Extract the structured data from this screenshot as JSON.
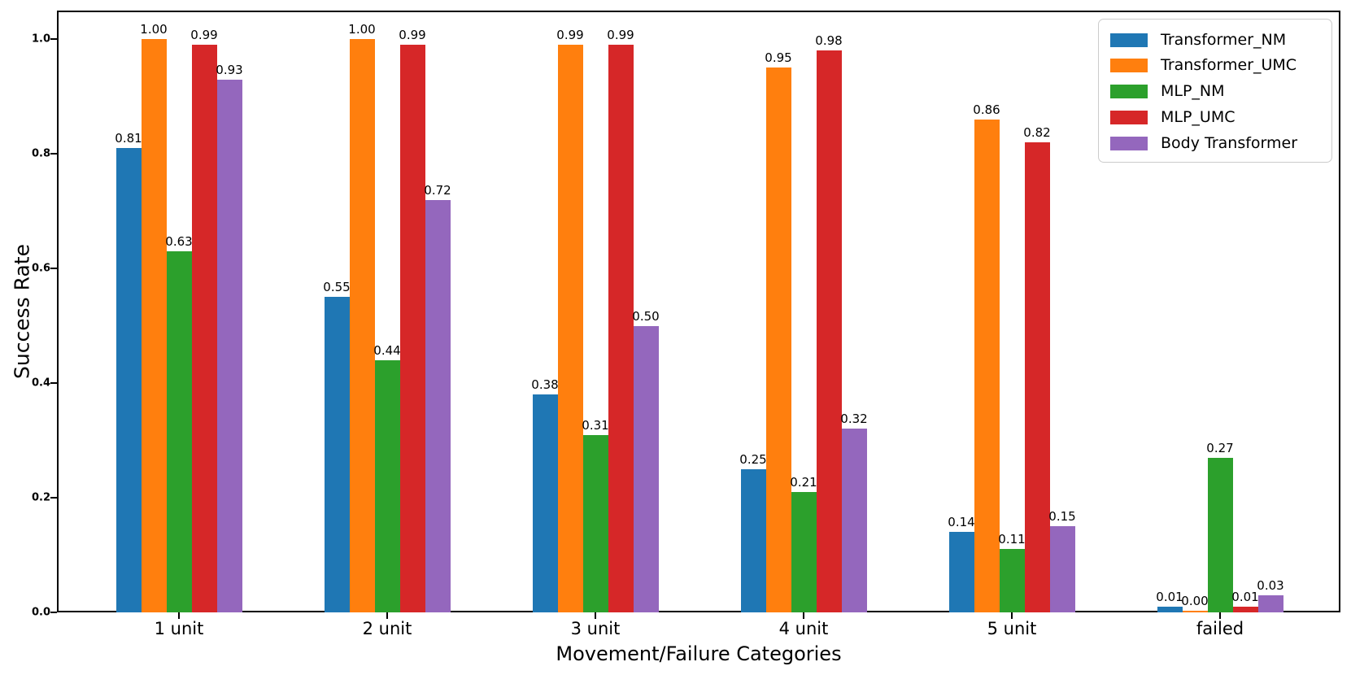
{
  "chart_data": {
    "type": "bar",
    "title": "",
    "xlabel": "Movement/Failure Categories",
    "ylabel": "Success Rate",
    "categories": [
      "1 unit",
      "2 unit",
      "3 unit",
      "4 unit",
      "5 unit",
      "failed"
    ],
    "series": [
      {
        "name": "Transformer_NM",
        "color": "#1f77b4",
        "values": [
          0.81,
          0.55,
          0.38,
          0.25,
          0.14,
          0.01
        ]
      },
      {
        "name": "Transformer_UMC",
        "color": "#ff7f0e",
        "values": [
          1.0,
          1.0,
          0.99,
          0.95,
          0.86,
          0.0
        ]
      },
      {
        "name": "MLP_NM",
        "color": "#2ca02c",
        "values": [
          0.63,
          0.44,
          0.31,
          0.21,
          0.11,
          0.27
        ]
      },
      {
        "name": "MLP_UMC",
        "color": "#d62728",
        "values": [
          0.99,
          0.99,
          0.99,
          0.98,
          0.82,
          0.01
        ]
      },
      {
        "name": "Body Transformer",
        "color": "#9467bd",
        "values": [
          0.93,
          0.72,
          0.5,
          0.32,
          0.15,
          0.03
        ]
      }
    ],
    "ylim": [
      0,
      1.05
    ],
    "yticks": [
      "0.0",
      "0.2",
      "0.4",
      "0.6",
      "0.8",
      "1.0"
    ],
    "grid": false,
    "legend_position": "upper right",
    "bar_value_labels": true,
    "value_label_decimals": 2
  }
}
